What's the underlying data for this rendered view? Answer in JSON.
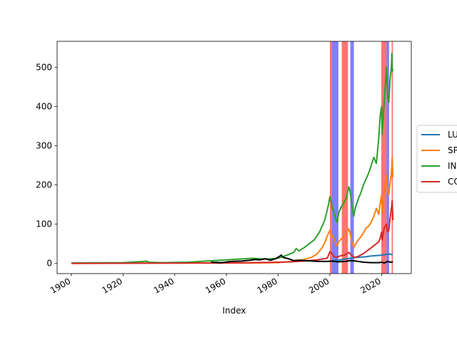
{
  "chart_data": {
    "type": "line",
    "title": "",
    "xlabel": "Index",
    "ylabel": "",
    "xlim": [
      1894.5,
      2031.5
    ],
    "ylim": [
      -26,
      566
    ],
    "grid": false,
    "legend_position": "right, outside the axes (clipped by image edge)",
    "x_ticks": [
      {
        "value": 1900,
        "label": "1900"
      },
      {
        "value": 1920,
        "label": "1920"
      },
      {
        "value": 1940,
        "label": "1940"
      },
      {
        "value": 1960,
        "label": "1960"
      },
      {
        "value": 1980,
        "label": "1980"
      },
      {
        "value": 2000,
        "label": "2000"
      },
      {
        "value": 2020,
        "label": "2020"
      }
    ],
    "y_ticks": [
      {
        "value": 0,
        "label": "0"
      },
      {
        "value": 100,
        "label": "100"
      },
      {
        "value": 200,
        "label": "200"
      },
      {
        "value": 300,
        "label": "300"
      },
      {
        "value": 400,
        "label": "400"
      },
      {
        "value": 500,
        "label": "500"
      }
    ],
    "shaded_regions": [
      {
        "x0": 2000.0,
        "x1": 2000.8,
        "color": "#ff0000",
        "opacity": 0.55
      },
      {
        "x0": 2000.8,
        "x1": 2003.3,
        "color": "#0000ff",
        "opacity": 0.5
      },
      {
        "x0": 2004.6,
        "x1": 2007.0,
        "color": "#ff0000",
        "opacity": 0.55
      },
      {
        "x0": 2007.9,
        "x1": 2009.3,
        "color": "#0000ff",
        "opacity": 0.5
      },
      {
        "x0": 2019.9,
        "x1": 2021.9,
        "color": "#ff0000",
        "opacity": 0.55
      },
      {
        "x0": 2021.9,
        "x1": 2022.9,
        "color": "#0000ff",
        "opacity": 0.5
      },
      {
        "x0": 2023.9,
        "x1": 2024.4,
        "color": "#ff0000",
        "opacity": 0.55
      }
    ],
    "series": [
      {
        "name": "LU",
        "color": "#1f77b4",
        "x": [
          2000.0,
          2002,
          2004,
          2006,
          2008,
          2010,
          2012,
          2014,
          2016,
          2018,
          2020,
          2022,
          2023,
          2024.3
        ],
        "y": [
          5,
          7,
          9,
          11,
          13,
          15,
          16,
          17,
          19,
          20,
          21,
          23,
          24,
          22
        ]
      },
      {
        "name": "SP",
        "color": "#ff7f0e",
        "x": [
          1900,
          1950,
          1970,
          1980,
          1985,
          1990,
          1993,
          1995,
          1997,
          1998,
          1999,
          2000.0,
          2000.5,
          2001,
          2002,
          2002.8,
          2003.5,
          2004.5,
          2005.5,
          2006.5,
          2007.3,
          2007.8,
          2008.5,
          2009.2,
          2009.8,
          2011,
          2012,
          2013,
          2014,
          2015,
          2016,
          2017,
          2018,
          2018.9,
          2019.5,
          2020.0,
          2020.2,
          2020.8,
          2021.5,
          2021.9,
          2022.3,
          2022.8,
          2023.3,
          2023.8,
          2024.1,
          2024.4
        ],
        "y": [
          1,
          1,
          1,
          2,
          5,
          10,
          16,
          24,
          40,
          52,
          70,
          84,
          78,
          70,
          55,
          45,
          56,
          63,
          68,
          80,
          88,
          78,
          55,
          40,
          48,
          60,
          68,
          78,
          90,
          95,
          105,
          120,
          140,
          125,
          155,
          175,
          130,
          170,
          205,
          225,
          185,
          175,
          205,
          230,
          270,
          220
        ]
      },
      {
        "name": "IN",
        "color": "#2ca02c",
        "x": [
          1900,
          1920,
          1928,
          1929,
          1930,
          1935,
          1945,
          1950,
          1955,
          1960,
          1965,
          1970,
          1975,
          1980,
          1983,
          1986,
          1987,
          1988,
          1990,
          1992,
          1994,
          1996,
          1998,
          1999.5,
          2000.0,
          2000.5,
          2001,
          2002,
          2002.8,
          2003.5,
          2004.5,
          2005.5,
          2006.5,
          2007.3,
          2007.8,
          2008.5,
          2009.2,
          2009.8,
          2011,
          2012,
          2013,
          2014,
          2015,
          2016,
          2017,
          2018,
          2018.9,
          2019.5,
          2020.0,
          2020.2,
          2020.8,
          2021.5,
          2021.9,
          2022.3,
          2022.8,
          2023.3,
          2023.8,
          2024.0,
          2024.2,
          2024.4
        ],
        "y": [
          1,
          2,
          5,
          6,
          3,
          2,
          3,
          5,
          7,
          9,
          11,
          13,
          11,
          13,
          20,
          28,
          38,
          32,
          40,
          50,
          60,
          80,
          110,
          150,
          170,
          160,
          140,
          120,
          105,
          130,
          145,
          155,
          170,
          195,
          185,
          150,
          120,
          140,
          165,
          180,
          200,
          215,
          230,
          250,
          270,
          255,
          320,
          380,
          400,
          330,
          390,
          460,
          500,
          430,
          410,
          470,
          500,
          535,
          490,
          495
        ]
      },
      {
        "name": "CO",
        "color": "#d62728",
        "x": [
          1900,
          1960,
          1970,
          1980,
          1985,
          1990,
          1995,
          1999,
          2000.0,
          2000.8,
          2001.5,
          2002.5,
          2003.5,
          2004.5,
          2006,
          2007.3,
          2008.5,
          2009.5,
          2011,
          2013,
          2015,
          2017,
          2018.9,
          2019.5,
          2020.0,
          2020.2,
          2021,
          2021.9,
          2022.3,
          2022.8,
          2023.3,
          2023.9,
          2024.1,
          2024.4
        ],
        "y": [
          0,
          1,
          2,
          3,
          4,
          6,
          9,
          13,
          30,
          25,
          18,
          15,
          18,
          20,
          22,
          28,
          20,
          15,
          18,
          25,
          35,
          45,
          55,
          65,
          80,
          60,
          90,
          100,
          80,
          85,
          115,
          145,
          160,
          110
        ]
      },
      {
        "name": "",
        "color": "#000000",
        "x": [
          1954,
          1958,
          1962,
          1966,
          1969,
          1971,
          1973,
          1975,
          1977,
          1979,
          1980.5,
          1981.2,
          1982,
          1984,
          1986,
          1988,
          1990,
          1993,
          1996,
          1999,
          2001,
          2003,
          2006,
          2008,
          2010,
          2013,
          2016,
          2019,
          2020.2,
          2021,
          2022.5,
          2023.5,
          2024.4
        ],
        "y": [
          3,
          2,
          5,
          6,
          8,
          10,
          9,
          12,
          8,
          12,
          18,
          21,
          15,
          12,
          7,
          8,
          7,
          6,
          5,
          5,
          6,
          4,
          5,
          7,
          6,
          3,
          2,
          2,
          3,
          1,
          5,
          3,
          4
        ]
      }
    ]
  }
}
